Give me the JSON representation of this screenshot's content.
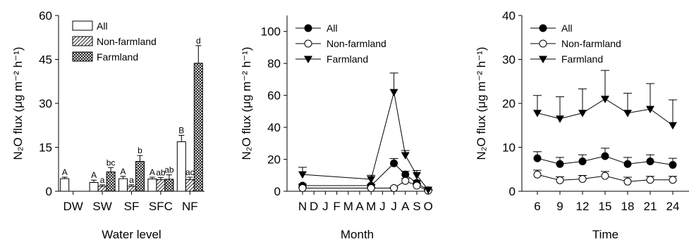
{
  "chart_data": [
    {
      "type": "bar",
      "xlabel": "Water level",
      "ylabel": "N₂O flux (μg m⁻² h⁻¹)",
      "ylim": [
        0,
        60
      ],
      "yticks": [
        0,
        15,
        30,
        45,
        60
      ],
      "categories": [
        "DW",
        "SW",
        "SF",
        "SFC",
        "NF"
      ],
      "legend_position": "top-left",
      "series": [
        {
          "name": "All",
          "pattern": "open",
          "values": [
            4.3,
            3.0,
            4.3,
            4.2,
            16.9
          ],
          "errors": [
            0.5,
            0.8,
            0.8,
            0.6,
            2.2
          ],
          "labels": [
            "A",
            "A",
            "A",
            "A",
            "B"
          ]
        },
        {
          "name": "Non-farmland",
          "pattern": "hatched",
          "values": [
            null,
            1.7,
            1.7,
            4.0,
            4.0
          ],
          "errors": [
            null,
            0.5,
            0.5,
            0.7,
            0.8
          ],
          "labels": [
            "",
            "a",
            "a",
            "ab",
            "ac"
          ]
        },
        {
          "name": "Farmland",
          "pattern": "crosshatched",
          "values": [
            null,
            6.6,
            10.2,
            4.1,
            43.7
          ],
          "errors": [
            null,
            1.5,
            2.0,
            1.5,
            6.0
          ],
          "labels": [
            "",
            "bc",
            "b",
            "ab",
            "d"
          ]
        }
      ]
    },
    {
      "type": "line",
      "xlabel": "Month",
      "ylabel": "N₂O flux (μg m⁻² h⁻¹)",
      "ylim": [
        0,
        110
      ],
      "yticks": [
        0,
        20,
        40,
        60,
        80,
        100
      ],
      "categories": [
        "N",
        "D",
        "J",
        "F",
        "M",
        "A",
        "M",
        "J",
        "J",
        "A",
        "S",
        "O"
      ],
      "legend_position": "top-left",
      "series": [
        {
          "name": "All",
          "marker": "filled-circle",
          "points": [
            [
              0,
              3.5
            ],
            [
              6,
              3.5
            ],
            [
              8,
              17.5
            ],
            [
              9,
              10.5
            ],
            [
              10,
              5.2
            ],
            [
              11,
              0.6
            ]
          ],
          "errors": [
            1.0,
            0.8,
            3.0,
            2.0,
            1.5,
            0.3
          ]
        },
        {
          "name": "Non-farmland",
          "marker": "open-circle",
          "points": [
            [
              0,
              2.0
            ],
            [
              6,
              2.0
            ],
            [
              8,
              2.0
            ],
            [
              9,
              6.5
            ],
            [
              10,
              3.5
            ],
            [
              11,
              0.4
            ]
          ],
          "errors": [
            0.5,
            0.5,
            0.5,
            1.5,
            1.0,
            0.2
          ]
        },
        {
          "name": "Farmland",
          "marker": "filled-triangle-down",
          "points": [
            [
              0,
              10.5
            ],
            [
              6,
              7.5
            ],
            [
              8,
              62.0
            ],
            [
              9,
              22.5
            ],
            [
              10,
              10.0
            ],
            [
              11,
              0.9
            ]
          ],
          "errors": [
            4.5,
            2.5,
            12.0,
            3.0,
            3.0,
            0.4
          ]
        }
      ]
    },
    {
      "type": "line",
      "xlabel": "Time",
      "ylabel": "N₂O flux (μg m⁻² h⁻¹)",
      "ylim": [
        0,
        40
      ],
      "yticks": [
        0,
        10,
        20,
        30,
        40
      ],
      "xticks": [
        6,
        9,
        12,
        15,
        18,
        21,
        24
      ],
      "legend_position": "top-left",
      "series": [
        {
          "name": "All",
          "marker": "filled-circle",
          "points": [
            [
              6,
              7.5
            ],
            [
              9,
              6.2
            ],
            [
              12,
              6.8
            ],
            [
              15,
              8.0
            ],
            [
              18,
              6.2
            ],
            [
              21,
              6.8
            ],
            [
              24,
              6.0
            ]
          ],
          "errors": [
            1.5,
            1.5,
            1.5,
            1.8,
            1.5,
            1.5,
            1.5
          ]
        },
        {
          "name": "Non-farmland",
          "marker": "open-circle",
          "points": [
            [
              6,
              3.8
            ],
            [
              9,
              2.5
            ],
            [
              12,
              2.8
            ],
            [
              15,
              3.5
            ],
            [
              18,
              2.2
            ],
            [
              21,
              2.6
            ],
            [
              24,
              2.6
            ]
          ],
          "errors": [
            1.0,
            0.8,
            0.8,
            1.0,
            1.0,
            0.8,
            0.8
          ]
        },
        {
          "name": "Farmland",
          "marker": "filled-triangle-down",
          "points": [
            [
              6,
              17.8
            ],
            [
              9,
              16.5
            ],
            [
              12,
              17.8
            ],
            [
              15,
              21.0
            ],
            [
              18,
              17.8
            ],
            [
              21,
              18.7
            ],
            [
              24,
              15.0
            ]
          ],
          "errors": [
            4.0,
            5.0,
            5.5,
            6.5,
            4.5,
            5.8,
            5.8
          ]
        }
      ]
    }
  ]
}
